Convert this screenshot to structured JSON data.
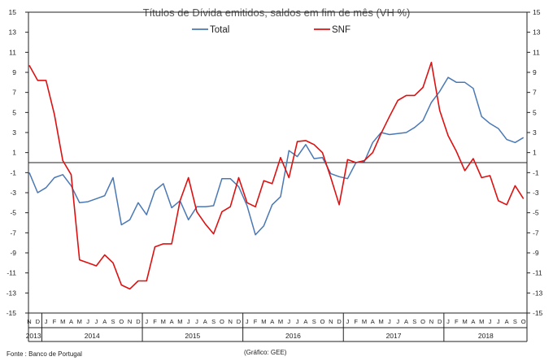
{
  "chart_data": {
    "type": "line",
    "title": "Títulos de Dívida emitidos, saldos em fim de mês  (VH %)",
    "xlabel": "",
    "ylabel": "",
    "ylim": [
      -15,
      15
    ],
    "y_ticks": [
      15,
      13,
      11,
      9,
      7,
      5,
      3,
      1,
      -1,
      -3,
      -5,
      -7,
      -9,
      -11,
      -13,
      -15
    ],
    "y_tick_labels": [
      "15",
      "13",
      "11",
      "9",
      "7",
      "5",
      "3",
      "1",
      "-1",
      "-3",
      "-5",
      "-7",
      "-9",
      "-11",
      "-13",
      "-15"
    ],
    "months": [
      "N",
      "D",
      "J",
      "F",
      "M",
      "A",
      "M",
      "J",
      "J",
      "A",
      "S",
      "O",
      "N",
      "D",
      "J",
      "F",
      "M",
      "A",
      "M",
      "J",
      "J",
      "A",
      "S",
      "O",
      "N",
      "D",
      "J",
      "F",
      "M",
      "A",
      "M",
      "J",
      "J",
      "A",
      "S",
      "O",
      "N",
      "D",
      "J",
      "F",
      "M",
      "A",
      "M",
      "J",
      "J",
      "A",
      "S",
      "O",
      "N",
      "D",
      "J",
      "F",
      "M",
      "A",
      "M",
      "J",
      "J",
      "A",
      "S",
      "O"
    ],
    "years": [
      {
        "label": "2013",
        "start": 0,
        "end": 1
      },
      {
        "label": "2014",
        "start": 2,
        "end": 13
      },
      {
        "label": "2015",
        "start": 14,
        "end": 25
      },
      {
        "label": "2016",
        "start": 26,
        "end": 37
      },
      {
        "label": "2017",
        "start": 38,
        "end": 49
      },
      {
        "label": "2018",
        "start": 50,
        "end": 59
      }
    ],
    "legend": [
      "Total",
      "SNF"
    ],
    "series": [
      {
        "name": "Total",
        "color": "#4a78b5",
        "values": [
          -1.0,
          -3.0,
          -2.5,
          -1.5,
          -1.2,
          -2.3,
          -4.0,
          -3.9,
          -3.6,
          -3.3,
          -1.5,
          -6.2,
          -5.7,
          -4.0,
          -5.2,
          -2.8,
          -2.1,
          -4.5,
          -3.8,
          -5.7,
          -4.4,
          -4.4,
          -4.3,
          -1.6,
          -1.6,
          -2.4,
          -4.3,
          -7.2,
          -6.3,
          -4.2,
          -3.4,
          1.2,
          0.6,
          1.8,
          0.4,
          0.5,
          -1.1,
          -1.4,
          -1.6,
          0.0,
          0.1,
          2.0,
          3.0,
          2.8,
          2.9,
          3.0,
          3.5,
          4.2,
          6.0,
          7.1,
          8.5,
          8.0,
          8.0,
          7.4,
          4.6,
          3.9,
          3.4,
          2.3,
          2.0,
          2.5
        ]
      },
      {
        "name": "SNF",
        "color": "#dd1111",
        "values": [
          9.7,
          8.2,
          8.2,
          4.8,
          0.2,
          -1.2,
          -9.7,
          -10.0,
          -10.3,
          -9.2,
          -10.0,
          -12.2,
          -12.6,
          -11.8,
          -11.8,
          -8.4,
          -8.1,
          -8.1,
          -3.8,
          -1.5,
          -4.9,
          -6.1,
          -7.1,
          -4.9,
          -4.4,
          -1.5,
          -4.0,
          -4.4,
          -1.8,
          -2.1,
          0.5,
          -1.5,
          2.1,
          2.2,
          1.8,
          1.0,
          -1.5,
          -4.2,
          0.3,
          0.0,
          0.2,
          1.0,
          2.9,
          4.6,
          6.2,
          6.7,
          6.7,
          7.5,
          10.0,
          5.2,
          2.7,
          1.1,
          -0.8,
          0.4,
          -1.5,
          -1.3,
          -3.8,
          -4.2,
          -2.3,
          -3.6
        ]
      }
    ]
  },
  "footer": {
    "source": "Fonte : Banco de Portugal",
    "credit": "(Gráfico: GEE)"
  }
}
